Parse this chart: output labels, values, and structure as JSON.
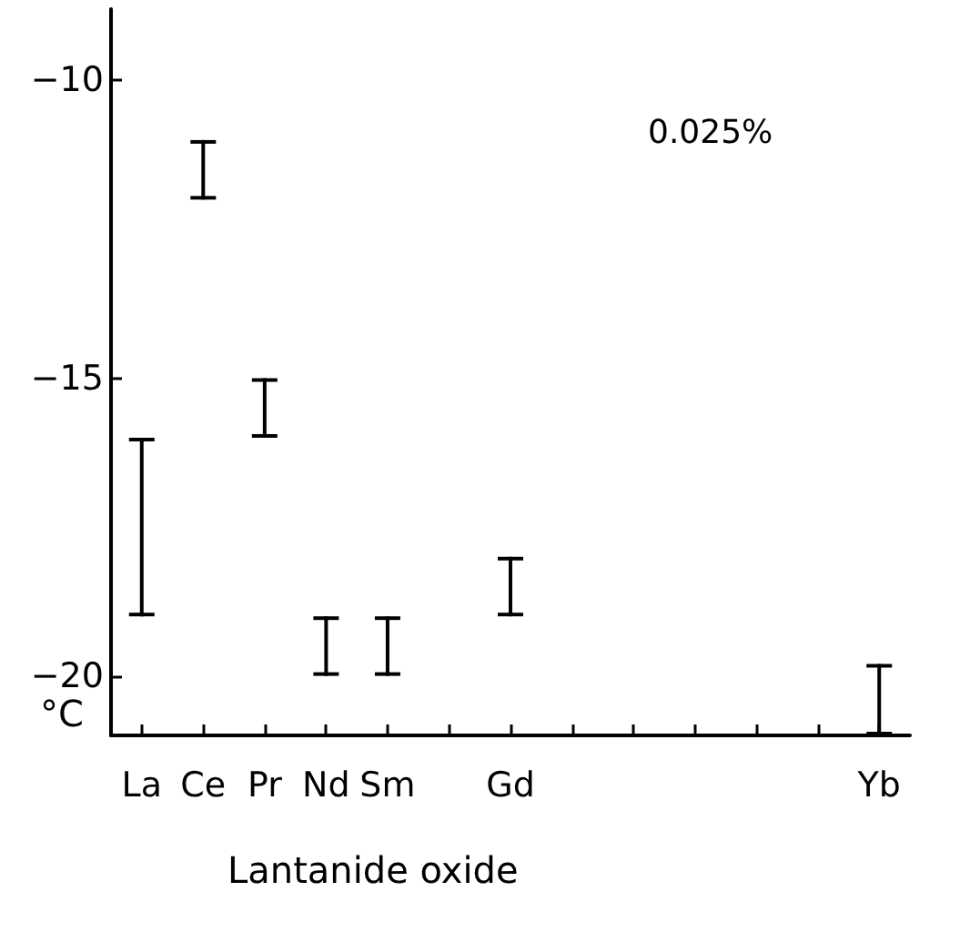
{
  "chart_data": {
    "type": "bar",
    "xlabel": "Lantanide oxide",
    "ylabel": "°C",
    "annotations": [
      "0.025%"
    ],
    "categories": [
      "La",
      "Ce",
      "Pr",
      "Nd",
      "Sm",
      null,
      "Gd",
      null,
      null,
      null,
      null,
      null,
      "Yb"
    ],
    "base": [
      -19,
      -12,
      -16,
      -20,
      -20,
      null,
      -19,
      null,
      null,
      null,
      null,
      null,
      -21
    ],
    "values": [
      3,
      1,
      1,
      1,
      1,
      null,
      1,
      null,
      null,
      null,
      null,
      null,
      1.2
    ],
    "color": "#000000",
    "ylim": [
      -21,
      -8.8
    ],
    "yticks": [
      -10,
      -15,
      -20
    ]
  }
}
